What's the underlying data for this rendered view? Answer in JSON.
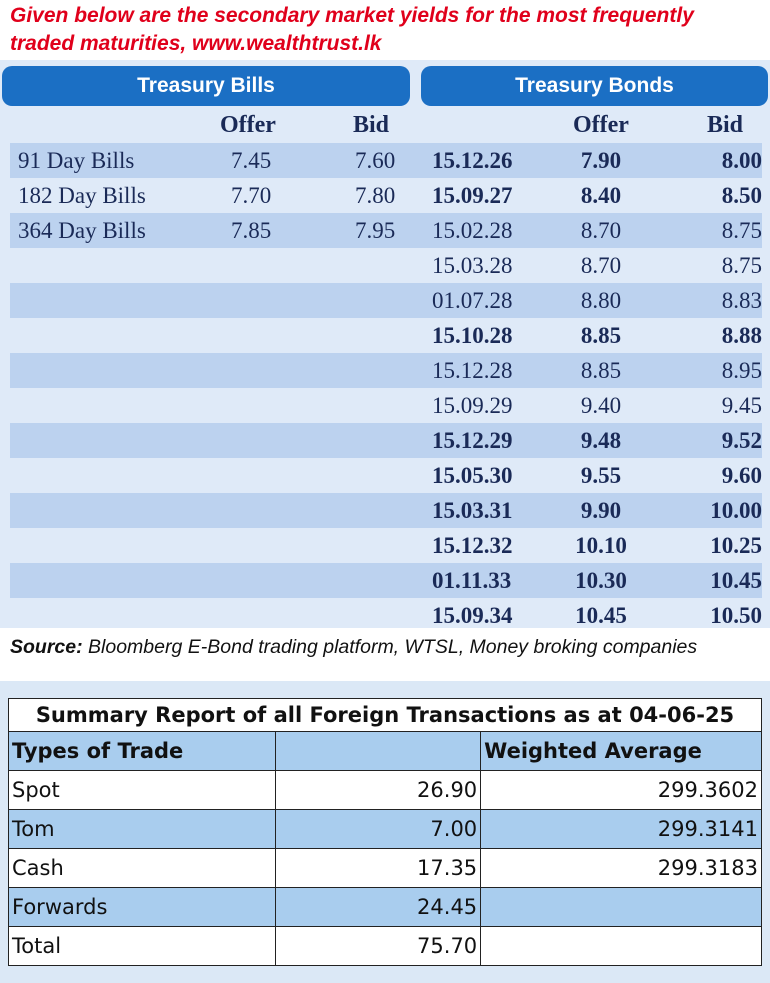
{
  "intro": {
    "line1": "Given below are the secondary market yields for the most frequently",
    "line2": "traded maturities, www.wealthtrust.lk"
  },
  "bills": {
    "title": "Treasury Bills",
    "offer_label": "Offer",
    "bid_label": "Bid",
    "rows": [
      {
        "name": "91 Day Bills",
        "offer": "7.45",
        "bid": "7.60"
      },
      {
        "name": "182 Day Bills",
        "offer": "7.70",
        "bid": "7.80"
      },
      {
        "name": "364 Day Bills",
        "offer": "7.85",
        "bid": "7.95"
      }
    ]
  },
  "bonds": {
    "title": "Treasury Bonds",
    "offer_label": "Offer",
    "bid_label": "Bid",
    "rows": [
      {
        "maturity": "15.12.26",
        "offer": "7.90",
        "bid": "8.00",
        "bold": true
      },
      {
        "maturity": "15.09.27",
        "offer": "8.40",
        "bid": "8.50",
        "bold": true
      },
      {
        "maturity": "15.02.28",
        "offer": "8.70",
        "bid": "8.75",
        "bold": false
      },
      {
        "maturity": "15.03.28",
        "offer": "8.70",
        "bid": "8.75",
        "bold": false
      },
      {
        "maturity": "01.07.28",
        "offer": "8.80",
        "bid": "8.83",
        "bold": false
      },
      {
        "maturity": "15.10.28",
        "offer": "8.85",
        "bid": "8.88",
        "bold": true
      },
      {
        "maturity": "15.12.28",
        "offer": "8.85",
        "bid": "8.95",
        "bold": false
      },
      {
        "maturity": "15.09.29",
        "offer": "9.40",
        "bid": "9.45",
        "bold": false
      },
      {
        "maturity": "15.12.29",
        "offer": "9.48",
        "bid": "9.52",
        "bold": true
      },
      {
        "maturity": "15.05.30",
        "offer": "9.55",
        "bid": "9.60",
        "bold": true
      },
      {
        "maturity": "15.03.31",
        "offer": "9.90",
        "bid": "10.00",
        "bold": true
      },
      {
        "maturity": "15.12.32",
        "offer": "10.10",
        "bid": "10.25",
        "bold": true
      },
      {
        "maturity": "01.11.33",
        "offer": "10.30",
        "bid": "10.45",
        "bold": true
      },
      {
        "maturity": "15.09.34",
        "offer": "10.45",
        "bid": "10.50",
        "bold": true
      }
    ]
  },
  "source": {
    "label": "Source:",
    "text": " Bloomberg E-Bond trading platform, WTSL, Money broking companies"
  },
  "summary": {
    "title": "Summary Report of all Foreign Transactions as at 04-06-25",
    "col_type": "Types of Trade",
    "col_amount": "",
    "col_avg": "Weighted Average",
    "rows": [
      {
        "type": "Spot",
        "amount": "26.90",
        "avg": "299.3602"
      },
      {
        "type": "Tom",
        "amount": "7.00",
        "avg": "299.3141"
      },
      {
        "type": "Cash",
        "amount": "17.35",
        "avg": "299.3183"
      },
      {
        "type": "Forwards",
        "amount": "24.45",
        "avg": ""
      },
      {
        "type": "Total",
        "amount": "75.70",
        "avg": ""
      }
    ]
  },
  "colors": {
    "header_blue": "#1b6fc4",
    "row_shade": "#bcd2ef",
    "intro_red": "#e0001b",
    "table_blue": "#a9cdee"
  }
}
